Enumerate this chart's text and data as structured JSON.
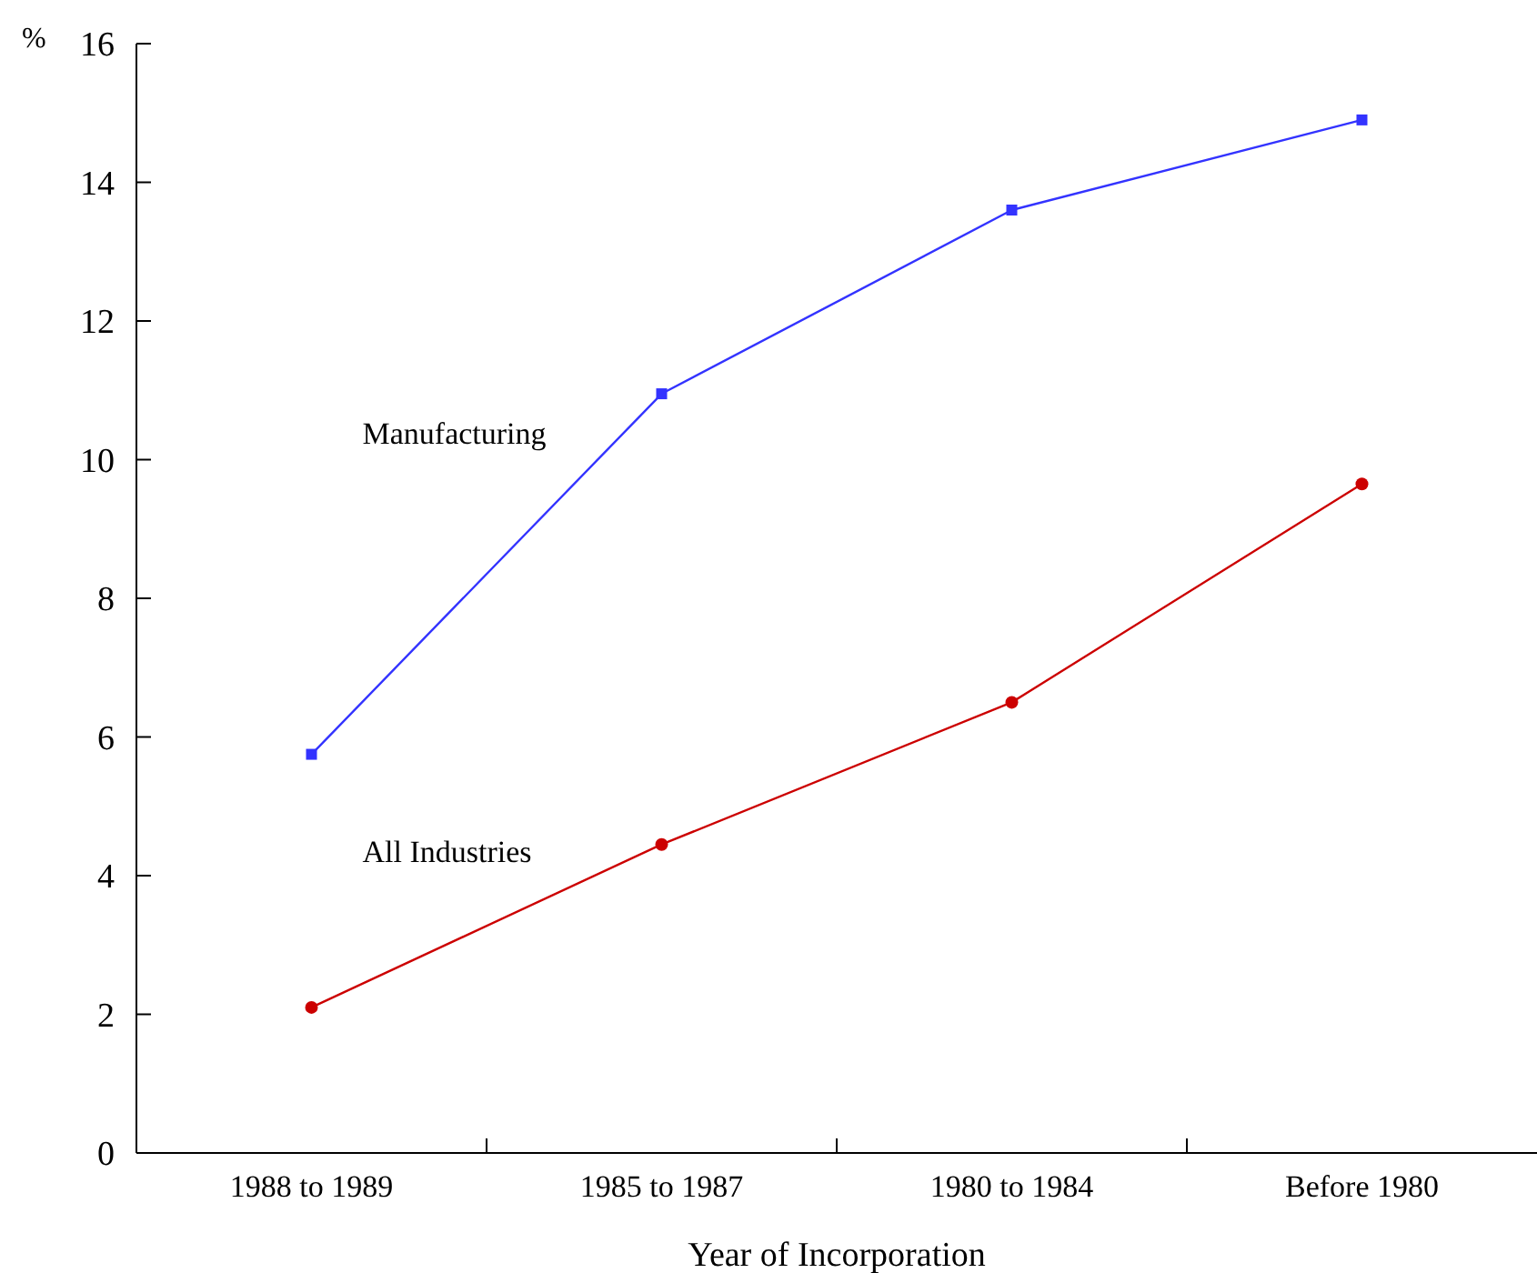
{
  "chart_data": {
    "type": "line",
    "xlabel": "Year of Incorporation",
    "ylabel": "%",
    "categories": [
      "1988 to 1989",
      "1985 to 1987",
      "1980 to 1984",
      "Before 1980"
    ],
    "series": [
      {
        "name": "Manufacturing",
        "color": "#3333ff",
        "values": [
          5.75,
          10.95,
          13.6,
          14.9
        ],
        "marker": "square"
      },
      {
        "name": "All Industries",
        "color": "#cc0000",
        "values": [
          2.1,
          4.45,
          6.5,
          9.65
        ],
        "marker": "circle"
      }
    ],
    "ylim": [
      0,
      16
    ],
    "yticks": [
      0,
      2,
      4,
      6,
      8,
      10,
      12,
      14,
      16
    ],
    "grid": false,
    "legend": false,
    "line_style": "solid"
  }
}
